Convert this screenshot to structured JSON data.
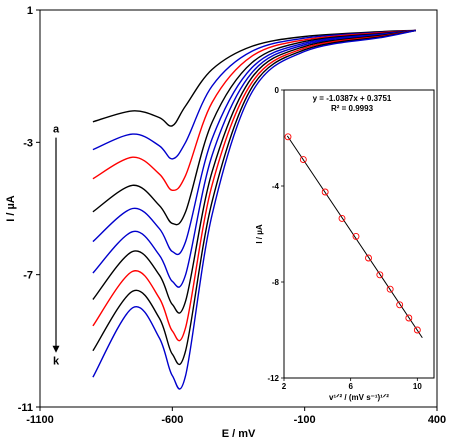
{
  "chart_data": [
    {
      "type": "line",
      "xlabel": "E / mV",
      "ylabel": "I / µA",
      "xlim": [
        -1100,
        400
      ],
      "ylim": [
        -11,
        1
      ],
      "xticks": [
        "-1100",
        "-600",
        "-100",
        "400"
      ],
      "yticks": [
        "1",
        "-3",
        "-7",
        "-11"
      ],
      "annotation_top": "a",
      "annotation_bottom": "k",
      "series_colors": [
        "#000000",
        "#0000cc",
        "#ff0000",
        "#000000",
        "#0000cc",
        "#0000cc",
        "#000000",
        "#ff0000",
        "#000000",
        "#0000cc"
      ],
      "series": [
        {
          "values": [
            [
              -900,
              -2.38
            ],
            [
              -750,
              -2.05
            ],
            [
              -650,
              -2.25
            ],
            [
              -600,
              -2.5
            ],
            [
              -550,
              -1.9
            ],
            [
              -450,
              -0.8
            ],
            [
              -300,
              -0.1
            ],
            [
              -100,
              0.2
            ],
            [
              200,
              0.35
            ],
            [
              320,
              0.38
            ]
          ]
        },
        {
          "values": [
            [
              -900,
              -3.22
            ],
            [
              -750,
              -2.75
            ],
            [
              -650,
              -3.1
            ],
            [
              -600,
              -3.5
            ],
            [
              -550,
              -3.0
            ],
            [
              -450,
              -1.3
            ],
            [
              -300,
              -0.25
            ],
            [
              -100,
              0.15
            ],
            [
              200,
              0.33
            ],
            [
              320,
              0.38
            ]
          ]
        },
        {
          "values": [
            [
              -900,
              -4.1
            ],
            [
              -750,
              -3.45
            ],
            [
              -650,
              -3.95
            ],
            [
              -600,
              -4.45
            ],
            [
              -550,
              -4.0
            ],
            [
              -450,
              -1.8
            ],
            [
              -300,
              -0.4
            ],
            [
              -100,
              0.1
            ],
            [
              200,
              0.32
            ],
            [
              320,
              0.38
            ]
          ]
        },
        {
          "values": [
            [
              -900,
              -5.1
            ],
            [
              -750,
              -4.3
            ],
            [
              -650,
              -4.9
            ],
            [
              -600,
              -5.45
            ],
            [
              -550,
              -5.1
            ],
            [
              -450,
              -2.4
            ],
            [
              -300,
              -0.6
            ],
            [
              -100,
              0.05
            ],
            [
              200,
              0.3
            ],
            [
              320,
              0.38
            ]
          ]
        },
        {
          "values": [
            [
              -900,
              -6.0
            ],
            [
              -750,
              -5.0
            ],
            [
              -650,
              -5.6
            ],
            [
              -600,
              -6.3
            ],
            [
              -550,
              -6.0
            ],
            [
              -450,
              -2.9
            ],
            [
              -300,
              -0.75
            ],
            [
              -100,
              0.0
            ],
            [
              200,
              0.28
            ],
            [
              320,
              0.38
            ]
          ]
        },
        {
          "values": [
            [
              -900,
              -6.95
            ],
            [
              -750,
              -5.7
            ],
            [
              -650,
              -6.4
            ],
            [
              -600,
              -7.2
            ],
            [
              -550,
              -7.0
            ],
            [
              -450,
              -3.4
            ],
            [
              -300,
              -0.9
            ],
            [
              -100,
              -0.05
            ],
            [
              200,
              0.26
            ],
            [
              320,
              0.38
            ]
          ]
        },
        {
          "values": [
            [
              -900,
              -7.75
            ],
            [
              -750,
              -6.3
            ],
            [
              -650,
              -7.0
            ],
            [
              -600,
              -7.9
            ],
            [
              -550,
              -7.8
            ],
            [
              -450,
              -3.9
            ],
            [
              -300,
              -1.05
            ],
            [
              -100,
              -0.1
            ],
            [
              200,
              0.24
            ],
            [
              320,
              0.38
            ]
          ]
        },
        {
          "values": [
            [
              -900,
              -8.55
            ],
            [
              -750,
              -6.9
            ],
            [
              -650,
              -7.7
            ],
            [
              -600,
              -8.7
            ],
            [
              -550,
              -8.6
            ],
            [
              -450,
              -4.3
            ],
            [
              -300,
              -1.2
            ],
            [
              -100,
              -0.15
            ],
            [
              200,
              0.22
            ],
            [
              320,
              0.38
            ]
          ]
        },
        {
          "values": [
            [
              -900,
              -9.3
            ],
            [
              -750,
              -7.5
            ],
            [
              -650,
              -8.3
            ],
            [
              -600,
              -9.4
            ],
            [
              -550,
              -9.3
            ],
            [
              -450,
              -4.8
            ],
            [
              -300,
              -1.35
            ],
            [
              -100,
              -0.2
            ],
            [
              200,
              0.2
            ],
            [
              320,
              0.38
            ]
          ]
        },
        {
          "values": [
            [
              -900,
              -10.1
            ],
            [
              -750,
              -8.0
            ],
            [
              -650,
              -8.9
            ],
            [
              -600,
              -10.05
            ],
            [
              -550,
              -10.05
            ],
            [
              -450,
              -5.2
            ],
            [
              -300,
              -1.5
            ],
            [
              -100,
              -0.25
            ],
            [
              200,
              0.18
            ],
            [
              320,
              0.38
            ]
          ]
        }
      ]
    },
    {
      "type": "scatter",
      "xlabel": "v¹ᐟ² / (mV s⁻¹)¹ᐟ²",
      "ylabel": "I / µA",
      "xlim": [
        2,
        11
      ],
      "ylim": [
        -12,
        0
      ],
      "xticks": [
        "2",
        "6",
        "10"
      ],
      "yticks": [
        "0",
        "-4",
        "-8",
        "-12"
      ],
      "equation": "y = -1.0387x + 0.3751",
      "r_squared": "R² = 0.9993",
      "point_color": "#ff0000",
      "fit": {
        "slope": -1.0387,
        "intercept": 0.3751,
        "x_range": [
          2.2,
          10.3
        ]
      },
      "x": [
        2.24,
        3.16,
        4.47,
        5.48,
        6.32,
        7.07,
        7.75,
        8.37,
        8.94,
        9.49,
        10.0
      ],
      "y": [
        -1.95,
        -2.9,
        -4.25,
        -5.35,
        -6.1,
        -7.0,
        -7.7,
        -8.3,
        -8.95,
        -9.5,
        -10.0
      ]
    }
  ]
}
